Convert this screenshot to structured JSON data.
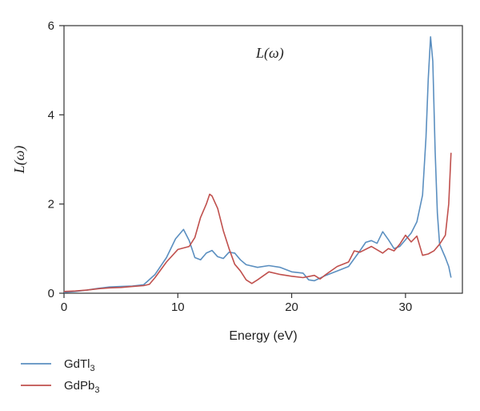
{
  "chart_data": {
    "type": "line",
    "title": "",
    "annotation": "L(ω)",
    "xlabel": "Energy (eV)",
    "ylabel": "L(ω)",
    "xlim": [
      0,
      35
    ],
    "ylim": [
      0,
      6
    ],
    "xticks": [
      0,
      10,
      20,
      30
    ],
    "yticks": [
      0,
      2,
      4,
      6
    ],
    "grid": false,
    "legend_position": "bottom-left",
    "series": [
      {
        "name": "GdTl",
        "name_subscript": "3",
        "color": "#5b8fc0",
        "points": [
          [
            0,
            0.02
          ],
          [
            1,
            0.04
          ],
          [
            2,
            0.07
          ],
          [
            3,
            0.11
          ],
          [
            4,
            0.14
          ],
          [
            5,
            0.15
          ],
          [
            6,
            0.16
          ],
          [
            7,
            0.19
          ],
          [
            8,
            0.42
          ],
          [
            9,
            0.8
          ],
          [
            9.8,
            1.22
          ],
          [
            10.5,
            1.43
          ],
          [
            11,
            1.18
          ],
          [
            11.5,
            0.8
          ],
          [
            12,
            0.75
          ],
          [
            12.5,
            0.9
          ],
          [
            13,
            0.96
          ],
          [
            13.5,
            0.82
          ],
          [
            14,
            0.78
          ],
          [
            14.5,
            0.92
          ],
          [
            15,
            0.9
          ],
          [
            15.5,
            0.75
          ],
          [
            16,
            0.64
          ],
          [
            17,
            0.58
          ],
          [
            18,
            0.62
          ],
          [
            19,
            0.58
          ],
          [
            20,
            0.48
          ],
          [
            21,
            0.45
          ],
          [
            21.5,
            0.3
          ],
          [
            22,
            0.28
          ],
          [
            23,
            0.4
          ],
          [
            24,
            0.5
          ],
          [
            25,
            0.6
          ],
          [
            26,
            0.95
          ],
          [
            26.5,
            1.14
          ],
          [
            27,
            1.18
          ],
          [
            27.5,
            1.12
          ],
          [
            28,
            1.38
          ],
          [
            28.5,
            1.2
          ],
          [
            29,
            1.0
          ],
          [
            29.5,
            1.05
          ],
          [
            30,
            1.2
          ],
          [
            30.5,
            1.35
          ],
          [
            31,
            1.6
          ],
          [
            31.5,
            2.2
          ],
          [
            31.8,
            3.5
          ],
          [
            32,
            4.8
          ],
          [
            32.2,
            5.75
          ],
          [
            32.4,
            5.2
          ],
          [
            32.6,
            3.2
          ],
          [
            32.8,
            1.8
          ],
          [
            33,
            1.1
          ],
          [
            33.5,
            0.8
          ],
          [
            33.8,
            0.6
          ],
          [
            34,
            0.35
          ]
        ]
      },
      {
        "name": "GdPb",
        "name_subscript": "3",
        "color": "#c0504d",
        "points": [
          [
            0,
            0.04
          ],
          [
            1,
            0.05
          ],
          [
            2,
            0.07
          ],
          [
            3,
            0.1
          ],
          [
            4,
            0.12
          ],
          [
            5,
            0.13
          ],
          [
            6,
            0.15
          ],
          [
            7,
            0.17
          ],
          [
            7.5,
            0.2
          ],
          [
            8,
            0.35
          ],
          [
            9,
            0.7
          ],
          [
            10,
            0.98
          ],
          [
            11,
            1.05
          ],
          [
            11.5,
            1.25
          ],
          [
            12,
            1.7
          ],
          [
            12.5,
            2.0
          ],
          [
            12.8,
            2.22
          ],
          [
            13,
            2.18
          ],
          [
            13.5,
            1.9
          ],
          [
            14,
            1.4
          ],
          [
            14.5,
            1.0
          ],
          [
            15,
            0.65
          ],
          [
            15.5,
            0.5
          ],
          [
            16,
            0.3
          ],
          [
            16.5,
            0.22
          ],
          [
            17,
            0.3
          ],
          [
            18,
            0.48
          ],
          [
            19,
            0.42
          ],
          [
            20,
            0.38
          ],
          [
            21,
            0.35
          ],
          [
            22,
            0.4
          ],
          [
            22.5,
            0.32
          ],
          [
            23,
            0.42
          ],
          [
            24,
            0.6
          ],
          [
            25,
            0.7
          ],
          [
            25.5,
            0.95
          ],
          [
            26,
            0.92
          ],
          [
            27,
            1.05
          ],
          [
            28,
            0.9
          ],
          [
            28.5,
            1.0
          ],
          [
            29,
            0.95
          ],
          [
            29.5,
            1.1
          ],
          [
            30,
            1.3
          ],
          [
            30.5,
            1.15
          ],
          [
            31,
            1.28
          ],
          [
            31.5,
            0.85
          ],
          [
            32,
            0.88
          ],
          [
            32.5,
            0.95
          ],
          [
            33,
            1.1
          ],
          [
            33.5,
            1.3
          ],
          [
            33.8,
            2.0
          ],
          [
            34,
            3.15
          ]
        ]
      }
    ]
  }
}
